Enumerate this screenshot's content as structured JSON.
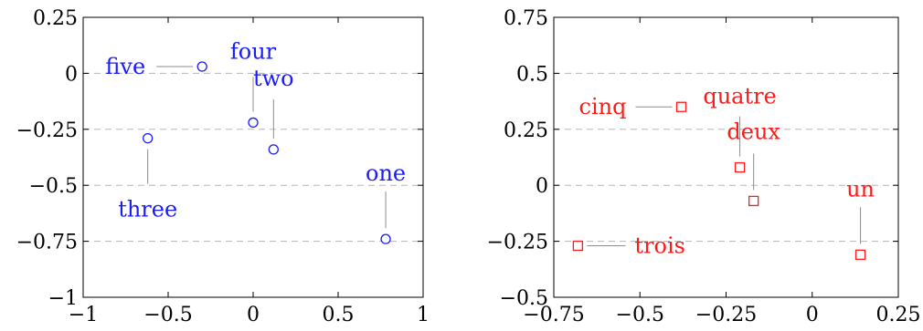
{
  "chart_data": [
    {
      "type": "scatter",
      "title": "",
      "xlabel": "",
      "ylabel": "",
      "xlim": [
        -1,
        1
      ],
      "ylim": [
        -1,
        0.25
      ],
      "xticks": [
        -1,
        -0.5,
        0,
        0.5,
        1
      ],
      "yticks": [
        -1,
        -0.75,
        -0.5,
        -0.25,
        0,
        0.25
      ],
      "xtick_labels": [
        "−1",
        "−0.5",
        "0",
        "0.5",
        "1"
      ],
      "ytick_labels": [
        "−1",
        "−0.75",
        "−0.5",
        "−0.25",
        "0",
        "0.25"
      ],
      "grid": "horizontal-dashed",
      "marker": "circle",
      "color": "#1a1aff",
      "points": [
        {
          "label": "one",
          "x": 0.78,
          "y": -0.74,
          "label_pos": "above"
        },
        {
          "label": "two",
          "x": 0.12,
          "y": -0.34,
          "label_pos": "above"
        },
        {
          "label": "three",
          "x": -0.62,
          "y": -0.29,
          "label_pos": "below"
        },
        {
          "label": "four",
          "x": 0.0,
          "y": -0.22,
          "label_pos": "above"
        },
        {
          "label": "five",
          "x": -0.3,
          "y": 0.03,
          "label_pos": "left"
        }
      ]
    },
    {
      "type": "scatter",
      "title": "",
      "xlabel": "",
      "ylabel": "",
      "xlim": [
        -0.75,
        0.25
      ],
      "ylim": [
        -0.5,
        0.75
      ],
      "xticks": [
        -0.75,
        -0.5,
        -0.25,
        0,
        0.25
      ],
      "yticks": [
        -0.5,
        -0.25,
        0,
        0.25,
        0.5,
        0.75
      ],
      "xtick_labels": [
        "−0.75",
        "−0.5",
        "−0.25",
        "0",
        "0.25"
      ],
      "ytick_labels": [
        "−0.5",
        "−0.25",
        "0",
        "0.25",
        "0.5",
        "0.75"
      ],
      "grid": "horizontal-dashed",
      "marker": "square",
      "color": "#ff1a1a",
      "points": [
        {
          "label": "un",
          "x": 0.14,
          "y": -0.31,
          "label_pos": "above"
        },
        {
          "label": "deux",
          "x": -0.17,
          "y": -0.07,
          "label_pos": "above"
        },
        {
          "label": "trois",
          "x": -0.68,
          "y": -0.27,
          "label_pos": "right"
        },
        {
          "label": "quatre",
          "x": -0.21,
          "y": 0.08,
          "label_pos": "above"
        },
        {
          "label": "cinq",
          "x": -0.38,
          "y": 0.35,
          "label_pos": "left"
        }
      ]
    }
  ]
}
